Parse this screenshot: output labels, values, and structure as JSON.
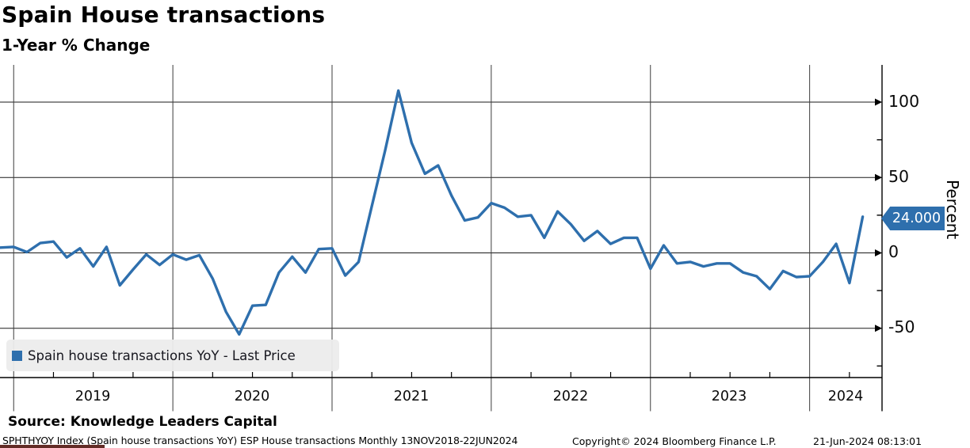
{
  "header": {
    "title": "Spain House transactions",
    "subtitle": "1-Year % Change"
  },
  "legend": {
    "label": "Spain house transactions YoY - Last Price",
    "swatch_color": "#2e6fad"
  },
  "last_price": {
    "value": "24.000",
    "tag_color": "#2e6fad"
  },
  "axis": {
    "y_label": "Percent",
    "y_major": [
      100,
      50,
      0,
      -50
    ],
    "y_minor": [
      75,
      25,
      -25,
      -75
    ],
    "x_years": [
      "2019",
      "2020",
      "2021",
      "2022",
      "2023",
      "2024"
    ]
  },
  "footer": {
    "source": "Source: Knowledge Leaders Capital",
    "footnote": "SPHTHYOY Index (Spain house transactions YoY) ESP House transactions  Monthly 13NOV2018-22JUN2024",
    "copyright": "Copyright© 2024 Bloomberg Finance L.P.",
    "datetime": "21-Jun-2024 08:13:01"
  },
  "chart_data": {
    "type": "line",
    "title": "Spain House transactions",
    "subtitle": "1-Year % Change",
    "ylabel": "Percent",
    "ylim": [
      -80,
      125
    ],
    "grid": true,
    "legend_position": "bottom-left",
    "line_color": "#2e6fad",
    "frequency": "Monthly",
    "range": "13NOV2018-22JUN2024",
    "x": [
      "2018-11",
      "2018-12",
      "2019-01",
      "2019-02",
      "2019-03",
      "2019-04",
      "2019-05",
      "2019-06",
      "2019-07",
      "2019-08",
      "2019-09",
      "2019-10",
      "2019-11",
      "2019-12",
      "2020-01",
      "2020-02",
      "2020-03",
      "2020-04",
      "2020-05",
      "2020-06",
      "2020-07",
      "2020-08",
      "2020-09",
      "2020-10",
      "2020-11",
      "2020-12",
      "2021-01",
      "2021-02",
      "2021-03",
      "2021-04",
      "2021-05",
      "2021-06",
      "2021-07",
      "2021-08",
      "2021-09",
      "2021-10",
      "2021-11",
      "2021-12",
      "2022-01",
      "2022-02",
      "2022-03",
      "2022-04",
      "2022-05",
      "2022-06",
      "2022-07",
      "2022-08",
      "2022-09",
      "2022-10",
      "2022-11",
      "2022-12",
      "2023-01",
      "2023-02",
      "2023-03",
      "2023-04",
      "2023-05",
      "2023-06",
      "2023-07",
      "2023-08",
      "2023-09",
      "2023-10",
      "2023-11",
      "2023-12",
      "2024-01",
      "2024-02",
      "2024-03",
      "2024-04"
    ],
    "series": [
      {
        "name": "Spain house transactions YoY - Last Price",
        "values": [
          3.5,
          4,
          0.5,
          6.5,
          7.5,
          -3,
          3,
          -9,
          4,
          -21.5,
          -11,
          -1,
          -8,
          -1,
          -4.5,
          -1.5,
          -17,
          -39,
          -54,
          -35,
          -34.5,
          -13,
          -2.5,
          -13,
          2.5,
          3,
          -15,
          -6,
          31,
          68,
          107.6,
          73,
          52.5,
          58,
          38,
          21.5,
          23.5,
          33,
          30,
          24,
          25,
          10,
          27.5,
          19,
          8,
          14.5,
          6,
          10,
          10,
          -10.5,
          5,
          -7,
          -6,
          -9,
          -7,
          -7,
          -13,
          -15.5,
          -24,
          -12,
          -16,
          -15.5,
          -6,
          6,
          -20,
          24
        ],
        "last_value": 24.0
      }
    ]
  }
}
